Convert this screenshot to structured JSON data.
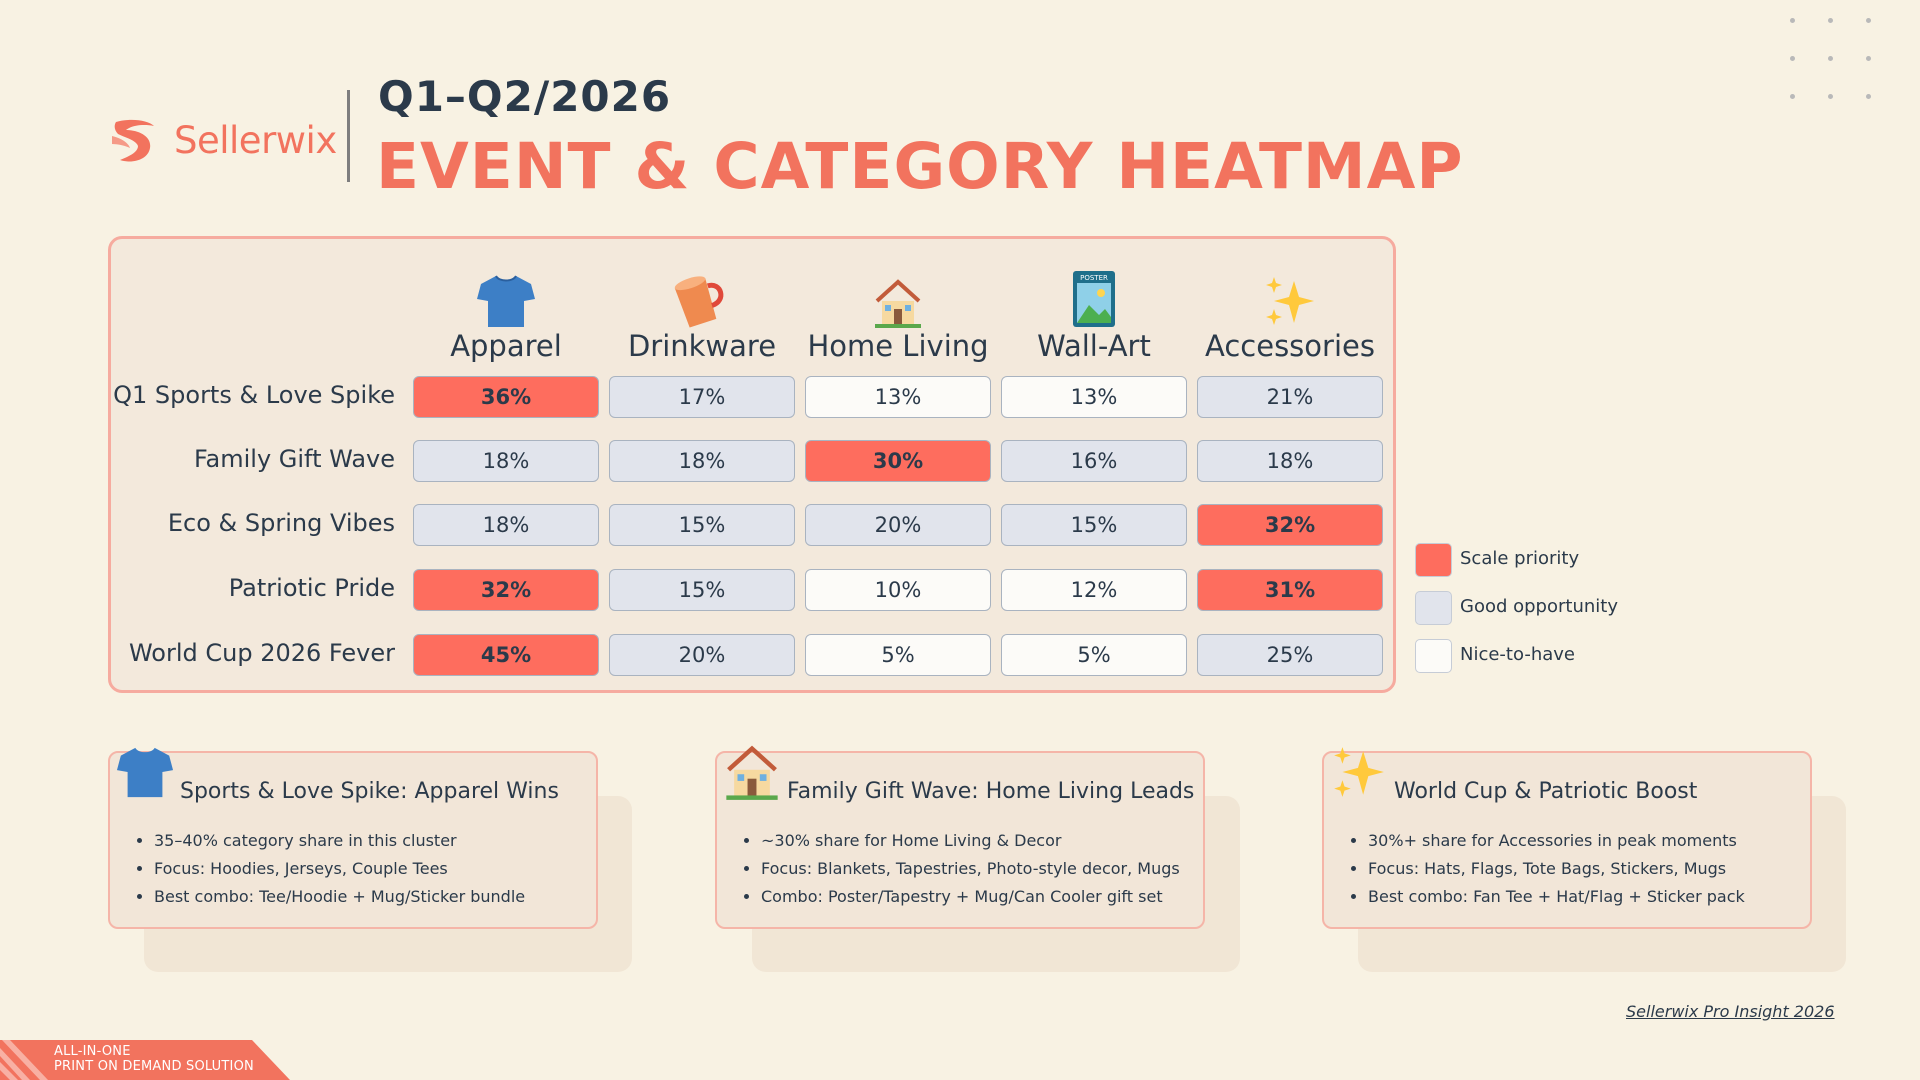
{
  "brand": {
    "name": "Sellerwix"
  },
  "header": {
    "period": "Q1–Q2/2026",
    "title": "EVENT & CATEGORY HEATMAP"
  },
  "heatmap": {
    "categories": [
      {
        "label": "Apparel",
        "icon": "tshirt-icon"
      },
      {
        "label": "Drinkware",
        "icon": "mug-icon"
      },
      {
        "label": "Home Living",
        "icon": "house-icon"
      },
      {
        "label": "Wall-Art",
        "icon": "poster-icon"
      },
      {
        "label": "Accessories",
        "icon": "sparkles-icon"
      }
    ],
    "rows": [
      {
        "label": "Q1 Sports & Love Spike",
        "values": [
          "36%",
          "17%",
          "13%",
          "13%",
          "21%"
        ],
        "levels": [
          "scale",
          "good",
          "nice",
          "nice",
          "good"
        ]
      },
      {
        "label": "Family Gift Wave",
        "values": [
          "18%",
          "18%",
          "30%",
          "16%",
          "18%"
        ],
        "levels": [
          "good",
          "good",
          "scale",
          "good",
          "good"
        ]
      },
      {
        "label": "Eco & Spring Vibes",
        "values": [
          "18%",
          "15%",
          "20%",
          "15%",
          "32%"
        ],
        "levels": [
          "good",
          "good",
          "good",
          "good",
          "scale"
        ]
      },
      {
        "label": "Patriotic Pride",
        "values": [
          "32%",
          "15%",
          "10%",
          "12%",
          "31%"
        ],
        "levels": [
          "scale",
          "good",
          "nice",
          "nice",
          "scale"
        ]
      },
      {
        "label": "World Cup 2026 Fever",
        "values": [
          "45%",
          "20%",
          "5%",
          "5%",
          "25%"
        ],
        "levels": [
          "scale",
          "good",
          "nice",
          "nice",
          "good"
        ]
      }
    ]
  },
  "legend": [
    {
      "label": "Scale priority",
      "color": "#fe6d5e"
    },
    {
      "label": "Good opportunity",
      "color": "#e1e4ec"
    },
    {
      "label": "Nice-to-have",
      "color": "#fcfbf8"
    }
  ],
  "cards": [
    {
      "title": "Sports & Love Spike: Apparel Wins",
      "icon": "tshirt-icon",
      "bullets": [
        "35–40% category share in this cluster",
        "Focus: Hoodies, Jerseys, Couple Tees",
        "Best combo: Tee/Hoodie + Mug/Sticker bundle"
      ]
    },
    {
      "title": "Family Gift Wave: Home Living Leads",
      "icon": "house-icon",
      "bullets": [
        "~30% share for Home Living & Decor",
        "Focus: Blankets, Tapestries, Photo-style decor, Mugs",
        "Combo: Poster/Tapestry + Mug/Can Cooler gift set"
      ]
    },
    {
      "title": "World Cup & Patriotic Boost",
      "icon": "sparkles-icon",
      "bullets": [
        "30%+ share for Accessories in peak moments",
        "Focus: Hats, Flags, Tote Bags, Stickers, Mugs",
        "Best combo: Fan Tee + Hat/Flag + Sticker pack"
      ]
    }
  ],
  "footer": {
    "note": "Sellerwix Pro Insight 2026",
    "banner_line1": "ALL-IN-ONE",
    "banner_line2": "PRINT ON DEMAND SOLUTION"
  },
  "colors": {
    "accent": "#f2735e",
    "dark": "#2b3a4a"
  }
}
